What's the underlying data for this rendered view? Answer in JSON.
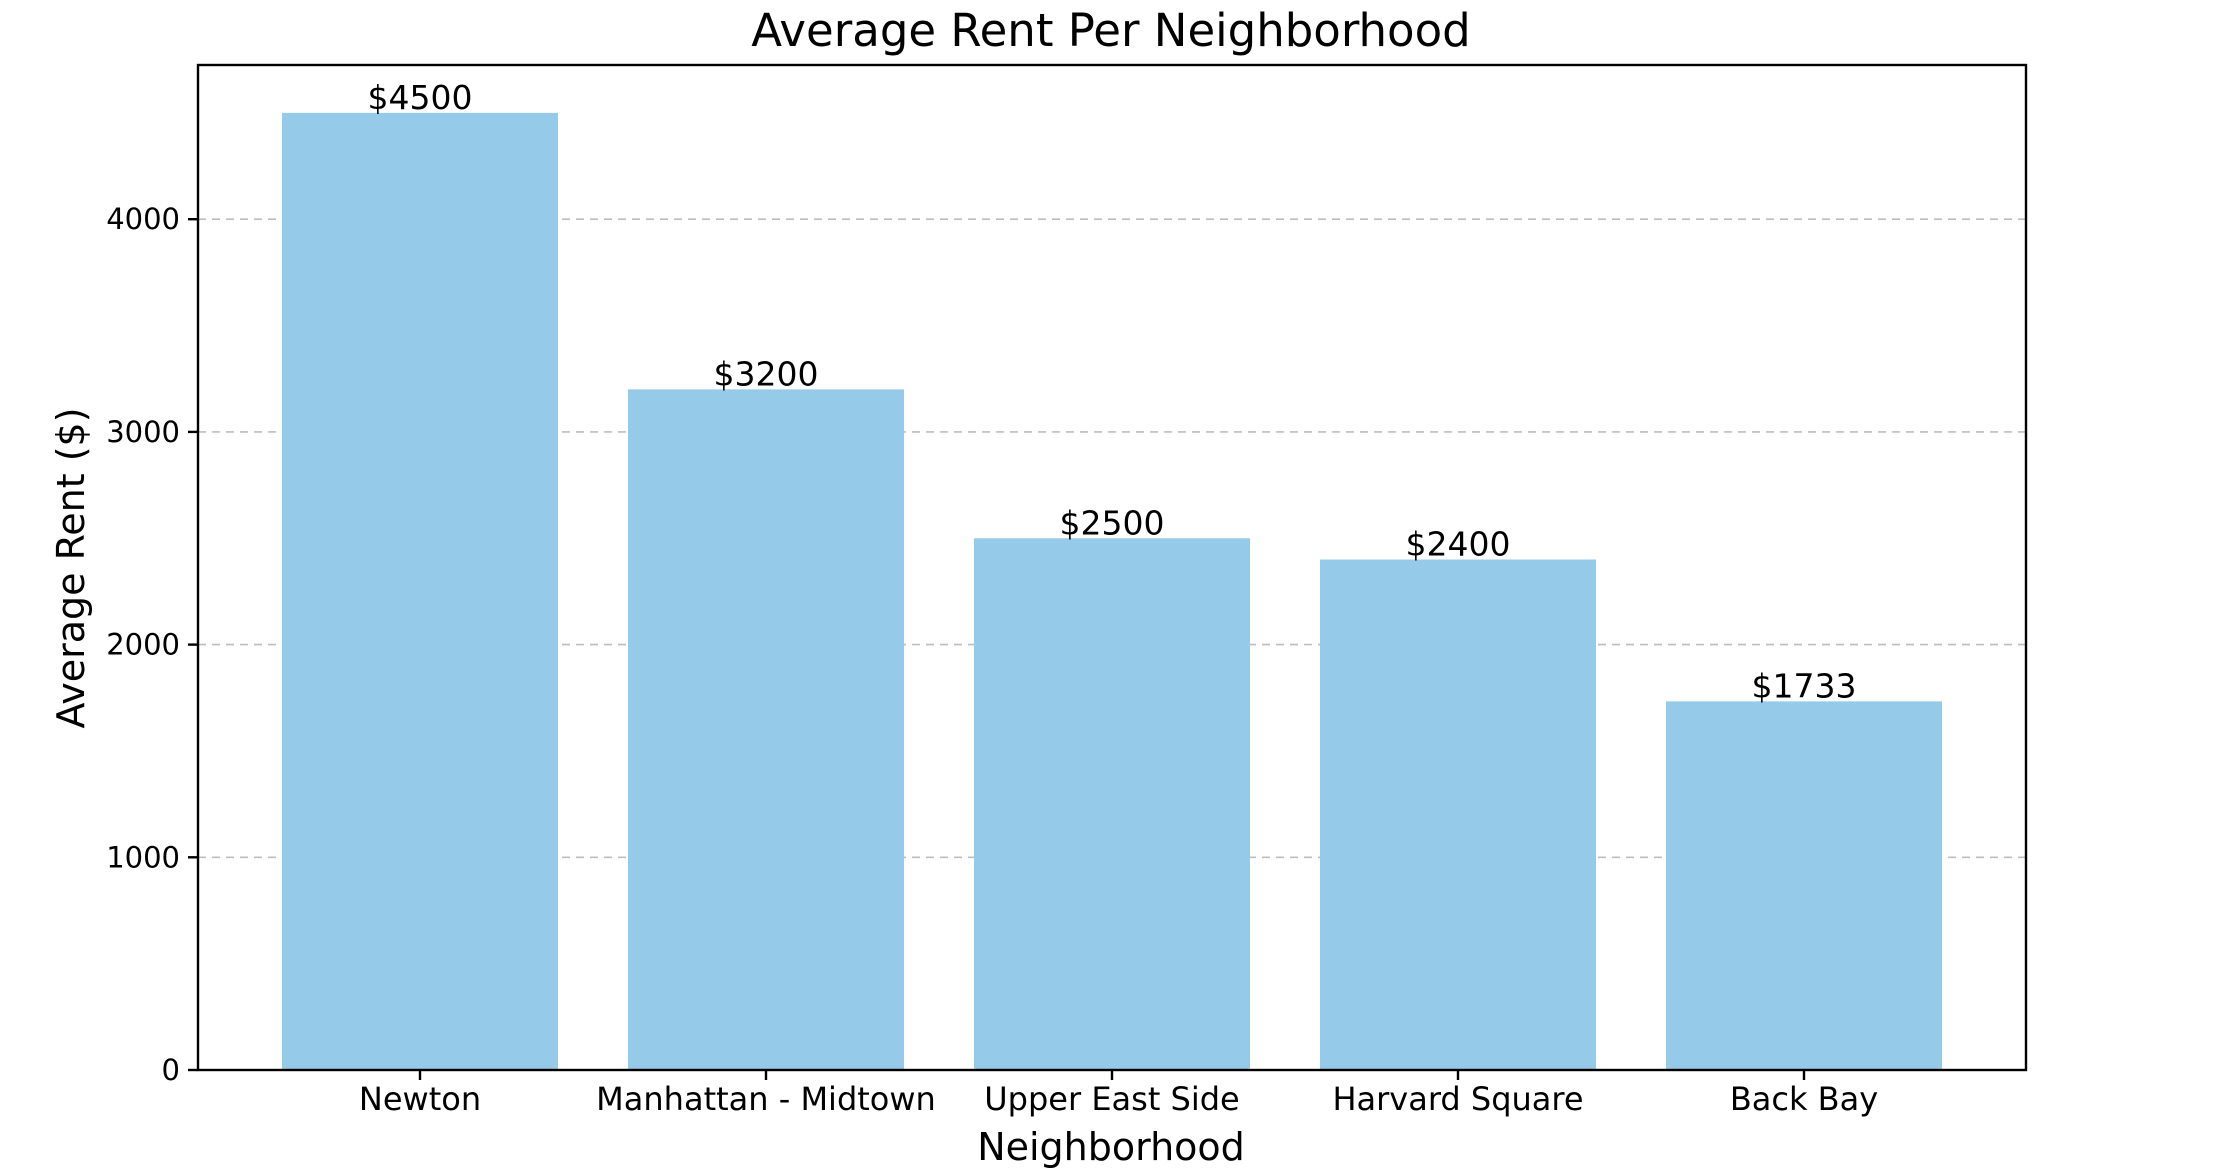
{
  "chart_data": {
    "type": "bar",
    "title": "Average Rent Per Neighborhood",
    "xlabel": "Neighborhood",
    "ylabel": "Average Rent ($)",
    "categories": [
      "Newton",
      "Manhattan - Midtown",
      "Upper East Side",
      "Harvard Square",
      "Back Bay"
    ],
    "values": [
      4500,
      3200,
      2500,
      2400,
      1733
    ],
    "value_labels": [
      "$4500",
      "$3200",
      "$2500",
      "$2400",
      "$1733"
    ],
    "yticks": [
      0,
      1000,
      2000,
      3000,
      4000
    ],
    "ytick_labels": [
      "0",
      "1000",
      "2000",
      "3000",
      "4000"
    ],
    "ylim": [
      0,
      4725
    ],
    "grid": "y-dashed",
    "legend": "none",
    "bar_color": "#95cae8"
  }
}
